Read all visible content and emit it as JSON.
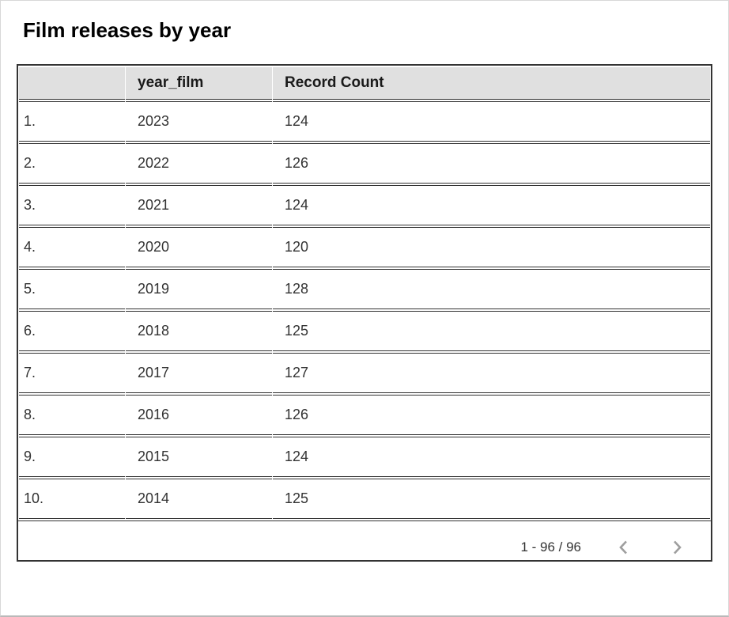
{
  "title": "Film releases by year",
  "chart_data": {
    "type": "table",
    "title": "Film releases by year",
    "columns": [
      "year_film",
      "Record Count"
    ],
    "index_labels": [
      "1.",
      "2.",
      "3.",
      "4.",
      "5.",
      "6.",
      "7.",
      "8.",
      "9.",
      "10."
    ],
    "years": [
      2023,
      2022,
      2021,
      2020,
      2019,
      2018,
      2017,
      2016,
      2015,
      2014
    ],
    "record_counts": [
      124,
      126,
      124,
      120,
      128,
      125,
      127,
      126,
      124,
      125
    ],
    "rows": [
      [
        "1.",
        "2023",
        "124"
      ],
      [
        "2.",
        "2022",
        "126"
      ],
      [
        "3.",
        "2021",
        "124"
      ],
      [
        "4.",
        "2020",
        "120"
      ],
      [
        "5.",
        "2019",
        "128"
      ],
      [
        "6.",
        "2018",
        "125"
      ],
      [
        "7.",
        "2017",
        "127"
      ],
      [
        "8.",
        "2016",
        "126"
      ],
      [
        "9.",
        "2015",
        "124"
      ],
      [
        "10.",
        "2014",
        "125"
      ]
    ],
    "total_rows": 96,
    "visible_range": "1 - 96"
  },
  "pagination": {
    "range_label": "1 - 96 / 96",
    "prev_icon": "chevron-left",
    "next_icon": "chevron-right"
  },
  "colors": {
    "header_bg": "#e0e0e0",
    "border_dark": "#333333",
    "title_color": "#000000",
    "header_text": "#1a1a1a",
    "body_text": "#333333",
    "chevron": "#9e9e9e",
    "frame_border": "#d8d8d8",
    "frame_bottom": "#b9b9b9"
  }
}
